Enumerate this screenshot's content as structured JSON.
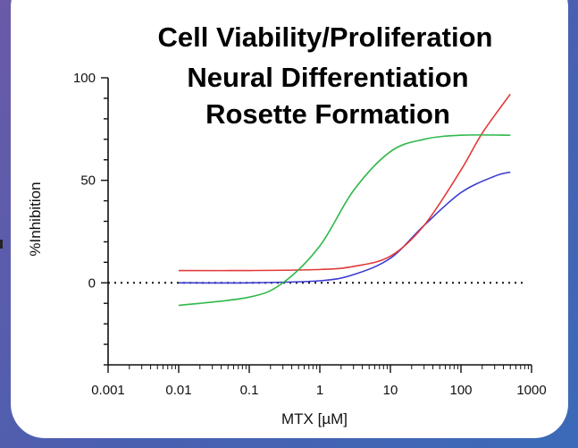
{
  "chart_data": {
    "type": "line",
    "title_lines": [
      {
        "text": "Cell Viability/Proliferation",
        "color": "#2461a8"
      },
      {
        "text": "Neural Differentiation",
        "color": "#e23a3a"
      },
      {
        "text": "Rosette Formation",
        "color": "#2fb84a"
      }
    ],
    "xlabel": "MTX [µM]",
    "ylabel": "%Inhibition",
    "xscale": "log",
    "xlim": [
      0.001,
      1000
    ],
    "ylim": [
      -40,
      100
    ],
    "xticks": [
      "0.001",
      "0.01",
      "0.1",
      "1",
      "10",
      "100",
      "1000"
    ],
    "yticks": [
      "0",
      "50",
      "100"
    ],
    "reference_line": {
      "y": 0,
      "style": "dotted"
    },
    "series": [
      {
        "label_ref": "Cell Viability/Proliferation",
        "color": "#3a3ad0",
        "x": [
          0.01,
          0.1,
          1,
          3,
          10,
          30,
          100,
          300,
          500
        ],
        "y": [
          0,
          0,
          1,
          4,
          12,
          28,
          44,
          52,
          54
        ]
      },
      {
        "label_ref": "Neural Differentiation",
        "color": "#e23a3a",
        "x": [
          0.01,
          0.1,
          1,
          3,
          10,
          30,
          100,
          200,
          500
        ],
        "y": [
          6,
          6,
          6.5,
          8,
          13,
          28,
          55,
          73,
          92
        ]
      },
      {
        "label_ref": "Rosette Formation",
        "color": "#2fb84a",
        "x": [
          0.01,
          0.1,
          0.3,
          1,
          3,
          10,
          30,
          100,
          500
        ],
        "y": [
          -11,
          -7,
          0,
          18,
          45,
          64,
          70,
          72,
          72
        ]
      }
    ]
  }
}
